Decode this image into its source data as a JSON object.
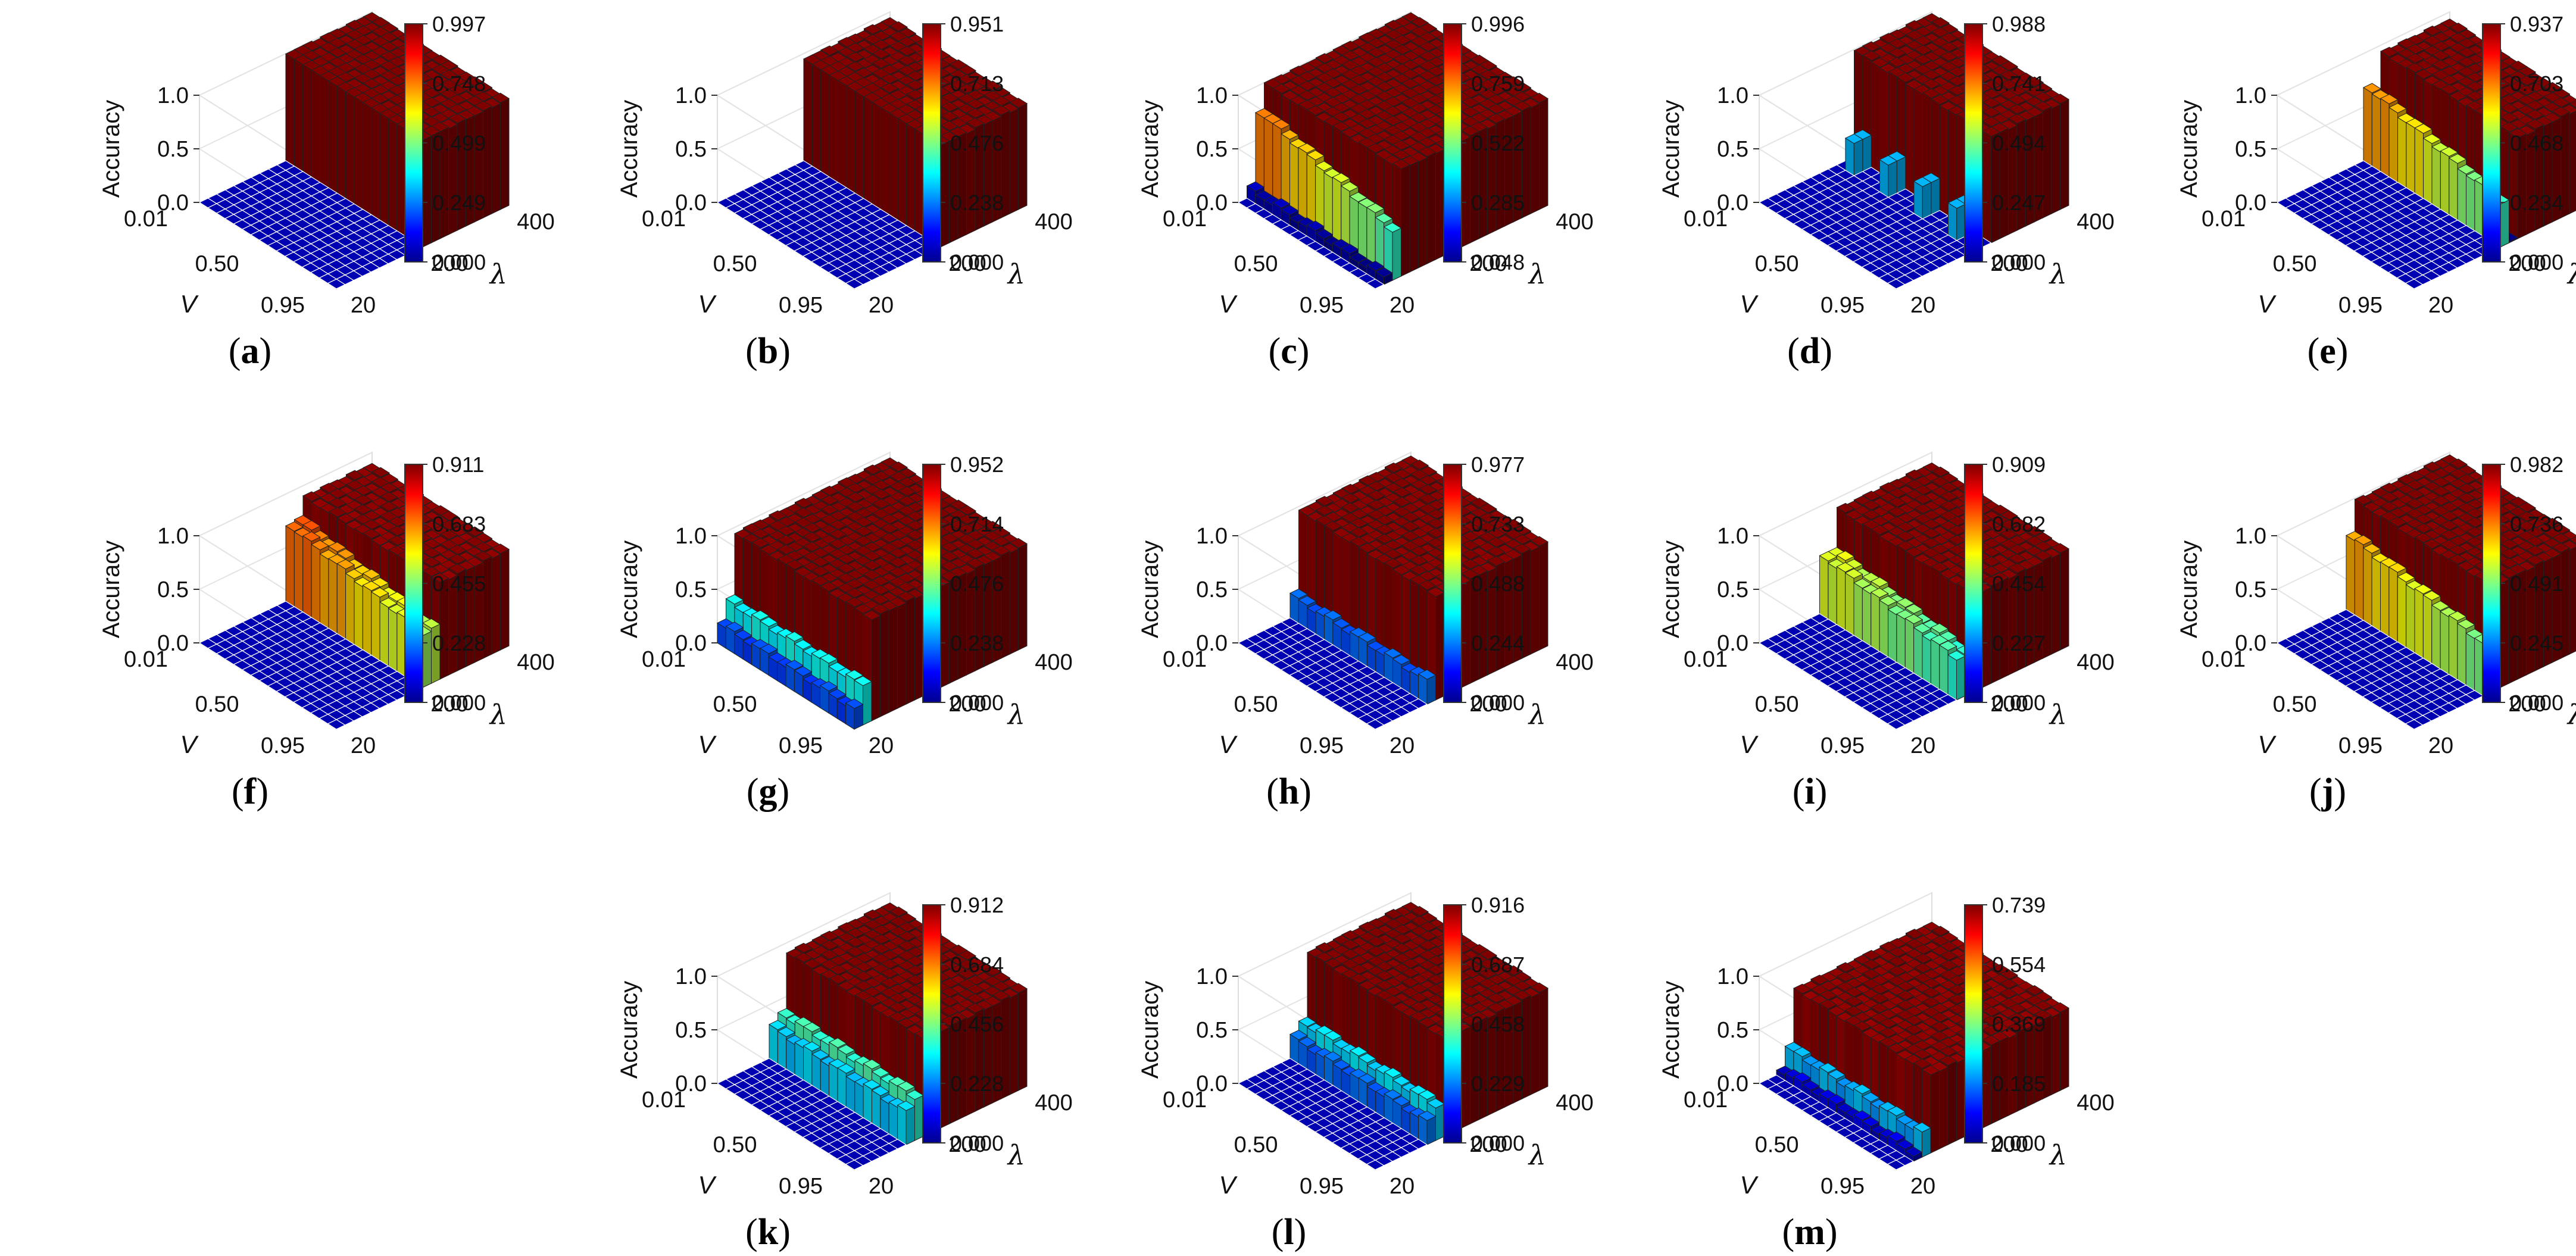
{
  "figure": {
    "zlabel": "Accuracy",
    "xlabel": "V",
    "ylabel": "λ",
    "z_ticks": [
      "0.0",
      "0.5",
      "1.0"
    ],
    "v_ticks": [
      "0.01",
      "0.50",
      "0.95"
    ],
    "lambda_ticks": [
      "20",
      "200",
      "400"
    ]
  },
  "chart_data": [
    {
      "type": "bar3d",
      "label": "(a)",
      "ylabel": "Accuracy",
      "xlabel": "V",
      "zlabel": "λ",
      "x_range": [
        0.01,
        0.95
      ],
      "lambda_range": [
        20,
        400
      ],
      "zlim": [
        0,
        1
      ],
      "colorbar": [
        0.0,
        0.249,
        0.499,
        0.748,
        0.997
      ],
      "colorbar_labels": [
        "0.997",
        "0.748",
        "0.499",
        "0.249",
        "0.000"
      ],
      "lambda_threshold": 0.48,
      "pattern": "all",
      "plateau": 0.997,
      "mid": 0.0,
      "low": 0.0
    },
    {
      "type": "bar3d",
      "label": "(b)",
      "ylabel": "Accuracy",
      "xlabel": "V",
      "zlabel": "λ",
      "x_range": [
        0.01,
        0.95
      ],
      "lambda_range": [
        20,
        400
      ],
      "zlim": [
        0,
        1
      ],
      "colorbar": [
        0.0,
        0.238,
        0.476,
        0.713,
        0.951
      ],
      "colorbar_labels": [
        "0.951",
        "0.713",
        "0.476",
        "0.238",
        "0.000"
      ],
      "lambda_threshold": 0.52,
      "pattern": "all",
      "plateau": 0.95,
      "mid": 0.0,
      "low": 0.0
    },
    {
      "type": "bar3d",
      "label": "(c)",
      "ylabel": "Accuracy",
      "xlabel": "V",
      "zlabel": "λ",
      "x_range": [
        0.01,
        0.95
      ],
      "lambda_range": [
        20,
        400
      ],
      "zlim": [
        0,
        1
      ],
      "colorbar": [
        0.048,
        0.285,
        0.522,
        0.759,
        0.996
      ],
      "colorbar_labels": [
        "0.996",
        "0.759",
        "0.522",
        "0.285",
        "0.048"
      ],
      "lambda_threshold": 0.06,
      "pattern": "first",
      "plateau": 0.996,
      "mid": 0.78,
      "low": 0.1
    },
    {
      "type": "bar3d",
      "label": "(d)",
      "ylabel": "Accuracy",
      "xlabel": "V",
      "zlabel": "λ",
      "x_range": [
        0.01,
        0.95
      ],
      "lambda_range": [
        20,
        400
      ],
      "zlim": [
        0,
        1
      ],
      "colorbar": [
        0.0,
        0.247,
        0.494,
        0.741,
        0.988
      ],
      "colorbar_labels": [
        "0.988",
        "0.741",
        "0.494",
        "0.247",
        "0.000"
      ],
      "lambda_threshold": 0.47,
      "pattern": "sparse",
      "plateau": 0.988,
      "mid": 0.3,
      "low": 0.0
    },
    {
      "type": "bar3d",
      "label": "(e)",
      "ylabel": "Accuracy",
      "xlabel": "V",
      "zlabel": "λ",
      "x_range": [
        0.01,
        0.95
      ],
      "lambda_range": [
        20,
        400
      ],
      "zlim": [
        0,
        1
      ],
      "colorbar": [
        0.0,
        0.234,
        0.468,
        0.703,
        0.937
      ],
      "colorbar_labels": [
        "0.937",
        "0.703",
        "0.468",
        "0.234",
        "0.000"
      ],
      "lambda_threshold": 0.52,
      "pattern": "first",
      "plateau": 0.937,
      "mid": 0.7,
      "low": 0.0
    },
    {
      "type": "bar3d",
      "label": "(f)",
      "ylabel": "Accuracy",
      "xlabel": "V",
      "zlabel": "λ",
      "x_range": [
        0.01,
        0.95
      ],
      "lambda_range": [
        20,
        400
      ],
      "zlim": [
        0,
        1
      ],
      "colorbar": [
        0.0,
        0.228,
        0.455,
        0.683,
        0.911
      ],
      "colorbar_labels": [
        "0.911",
        "0.683",
        "0.455",
        "0.228",
        "0.000"
      ],
      "lambda_threshold": 0.52,
      "pattern": "two",
      "plateau": 0.9,
      "mid": 0.72,
      "low": 0.0
    },
    {
      "type": "bar3d",
      "label": "(g)",
      "ylabel": "Accuracy",
      "xlabel": "V",
      "zlabel": "λ",
      "x_range": [
        0.01,
        0.95
      ],
      "lambda_range": [
        20,
        400
      ],
      "zlim": [
        0,
        1
      ],
      "colorbar": [
        0.0,
        0.238,
        0.476,
        0.714,
        0.952
      ],
      "colorbar_labels": [
        "0.952",
        "0.714",
        "0.476",
        "0.238",
        "0.000"
      ],
      "lambda_threshold": 0.0,
      "pattern": "ramp",
      "plateau": 0.952,
      "mid": 0.72,
      "low": 0.1
    },
    {
      "type": "bar3d",
      "label": "(h)",
      "ylabel": "Accuracy",
      "xlabel": "V",
      "zlabel": "λ",
      "x_range": [
        0.01,
        0.95
      ],
      "lambda_range": [
        20,
        400
      ],
      "zlim": [
        0,
        1
      ],
      "colorbar": [
        0.0,
        0.244,
        0.488,
        0.733,
        0.977
      ],
      "colorbar_labels": [
        "0.977",
        "0.733",
        "0.488",
        "0.244",
        "0.000"
      ],
      "lambda_threshold": 0.28,
      "pattern": "ramp",
      "plateau": 0.97,
      "mid": 0.55,
      "low": 0.1
    },
    {
      "type": "bar3d",
      "label": "(i)",
      "ylabel": "Accuracy",
      "xlabel": "V",
      "zlabel": "λ",
      "x_range": [
        0.01,
        0.95
      ],
      "lambda_range": [
        20,
        400
      ],
      "zlim": [
        0,
        1
      ],
      "colorbar": [
        0.0,
        0.227,
        0.454,
        0.682,
        0.909
      ],
      "colorbar_labels": [
        "0.909",
        "0.682",
        "0.454",
        "0.227",
        "0.000"
      ],
      "lambda_threshold": 0.35,
      "pattern": "two",
      "plateau": 0.905,
      "mid": 0.55,
      "low": 0.05
    },
    {
      "type": "bar3d",
      "label": "(j)",
      "ylabel": "Accuracy",
      "xlabel": "V",
      "zlabel": "λ",
      "x_range": [
        0.01,
        0.95
      ],
      "lambda_range": [
        20,
        400
      ],
      "zlim": [
        0,
        1
      ],
      "colorbar": [
        0.0,
        0.245,
        0.491,
        0.736,
        0.982
      ],
      "colorbar_labels": [
        "0.982",
        "0.736",
        "0.491",
        "0.245",
        "0.000"
      ],
      "lambda_threshold": 0.38,
      "pattern": "two",
      "plateau": 0.98,
      "mid": 0.7,
      "low": 0.08
    },
    {
      "type": "bar3d",
      "label": "(k)",
      "ylabel": "Accuracy",
      "xlabel": "V",
      "zlabel": "λ",
      "x_range": [
        0.01,
        0.95
      ],
      "lambda_range": [
        20,
        400
      ],
      "zlim": [
        0,
        1
      ],
      "colorbar": [
        0.0,
        0.228,
        0.456,
        0.684,
        0.912
      ],
      "colorbar_labels": [
        "0.912",
        "0.684",
        "0.456",
        "0.228",
        "0.000"
      ],
      "lambda_threshold": 0.3,
      "pattern": "ramp",
      "plateau": 0.91,
      "mid": 0.6,
      "low": 0.25
    },
    {
      "type": "bar3d",
      "label": "(l)",
      "ylabel": "Accuracy",
      "xlabel": "V",
      "zlabel": "λ",
      "x_range": [
        0.01,
        0.95
      ],
      "lambda_range": [
        20,
        400
      ],
      "zlim": [
        0,
        1
      ],
      "colorbar": [
        0.0,
        0.229,
        0.458,
        0.687,
        0.916
      ],
      "colorbar_labels": [
        "0.916",
        "0.687",
        "0.458",
        "0.229",
        "0.000"
      ],
      "lambda_threshold": 0.3,
      "pattern": "ramp",
      "plateau": 0.915,
      "mid": 0.55,
      "low": 0.15
    },
    {
      "type": "bar3d",
      "label": "(m)",
      "ylabel": "Accuracy",
      "xlabel": "V",
      "zlabel": "λ",
      "x_range": [
        0.01,
        0.95
      ],
      "lambda_range": [
        20,
        400
      ],
      "zlim": [
        0,
        1
      ],
      "colorbar": [
        0.0,
        0.185,
        0.369,
        0.554,
        0.739
      ],
      "colorbar_labels": [
        "0.739",
        "0.554",
        "0.369",
        "0.185",
        "0.000"
      ],
      "lambda_threshold": 0.12,
      "pattern": "ramp",
      "plateau": 0.73,
      "mid": 0.6,
      "low": 0.05
    }
  ]
}
